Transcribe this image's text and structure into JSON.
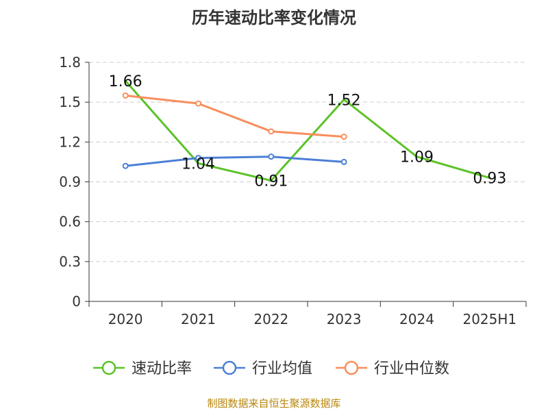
{
  "title": "历年速动比率变化情况",
  "source": "制图数据来自恒生聚源数据库",
  "colors": {
    "speed_ratio": "#5bc227",
    "industry_mean": "#4b7fd6",
    "industry_median": "#f98d5b",
    "grid": "#cccccc",
    "axis": "#333333"
  },
  "chart_data": {
    "type": "line",
    "title": "历年速动比率变化情况",
    "categories": [
      "2020",
      "2021",
      "2022",
      "2023",
      "2024",
      "2025H1"
    ],
    "ylim": [
      0,
      1.8
    ],
    "yticks": [
      "0",
      "0.3",
      "0.6",
      "0.9",
      "1.2",
      "1.5",
      "1.8"
    ],
    "grid": true,
    "legend_position": "bottom",
    "series": [
      {
        "name": "速动比率",
        "color": "#5bc227",
        "values": [
          1.66,
          1.04,
          0.91,
          1.52,
          1.09,
          0.93
        ],
        "labels": true,
        "markers": false
      },
      {
        "name": "行业均值",
        "color": "#4b7fd6",
        "values": [
          1.02,
          1.08,
          1.09,
          1.05,
          null,
          null
        ],
        "labels": false,
        "markers": true
      },
      {
        "name": "行业中位数",
        "color": "#f98d5b",
        "values": [
          1.55,
          1.49,
          1.28,
          1.24,
          null,
          null
        ],
        "labels": false,
        "markers": true
      }
    ]
  }
}
